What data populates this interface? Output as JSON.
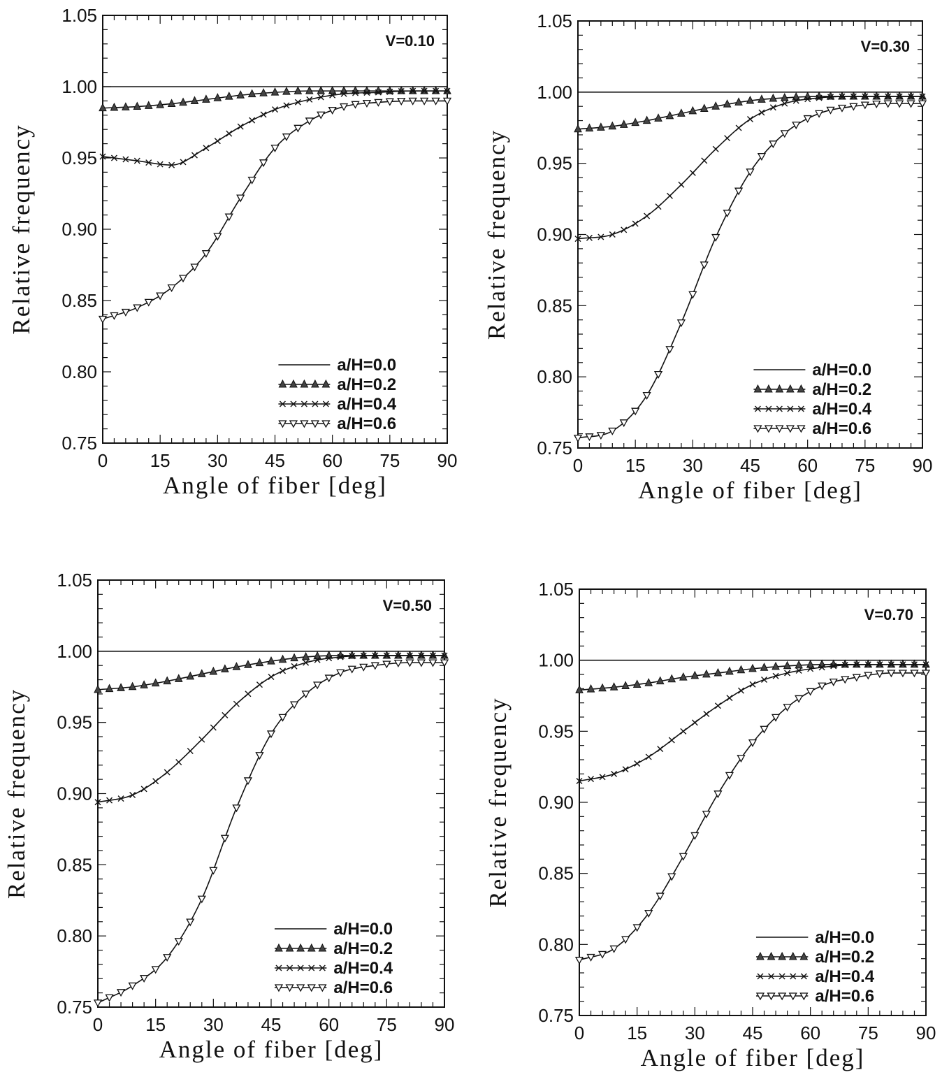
{
  "chart_data": [
    {
      "type": "line",
      "annotation": "V=0.10",
      "xlabel": "Angle of fiber [deg]",
      "ylabel": "Relative frequency",
      "xlim": [
        0,
        90
      ],
      "ylim": [
        0.75,
        1.05
      ],
      "xticks": [
        "0",
        "15",
        "30",
        "45",
        "60",
        "75",
        "90"
      ],
      "yticks": [
        "0.75",
        "0.80",
        "0.85",
        "0.90",
        "0.95",
        "1.00",
        "1.05"
      ],
      "legend_position": "bottom-right",
      "x": [
        0,
        9,
        18,
        27,
        36,
        45,
        54,
        63,
        72,
        81,
        90
      ],
      "series": [
        {
          "name": "a/H=0.0",
          "marker": "none",
          "values": [
            1.0,
            1.0,
            1.0,
            1.0,
            1.0,
            1.0,
            1.0,
            1.0,
            1.0,
            1.0,
            1.0
          ]
        },
        {
          "name": "a/H=0.2",
          "marker": "filled",
          "values": [
            0.985,
            0.986,
            0.988,
            0.991,
            0.994,
            0.996,
            0.997,
            0.997,
            0.997,
            0.997,
            0.997
          ]
        },
        {
          "name": "a/H=0.4",
          "marker": "cross",
          "values": [
            0.951,
            0.948,
            0.945,
            0.957,
            0.972,
            0.984,
            0.991,
            0.995,
            0.996,
            0.997,
            0.997
          ]
        },
        {
          "name": "a/H=0.6",
          "marker": "open",
          "values": [
            0.837,
            0.845,
            0.859,
            0.883,
            0.922,
            0.957,
            0.976,
            0.986,
            0.989,
            0.99,
            0.99
          ]
        }
      ]
    },
    {
      "type": "line",
      "annotation": "V=0.30",
      "xlabel": "Angle of fiber [deg]",
      "ylabel": "Relative frequency",
      "xlim": [
        0,
        90
      ],
      "ylim": [
        0.75,
        1.05
      ],
      "xticks": [
        "0",
        "15",
        "30",
        "45",
        "60",
        "75",
        "90"
      ],
      "yticks": [
        "0.75",
        "0.80",
        "0.85",
        "0.90",
        "0.95",
        "1.00",
        "1.05"
      ],
      "legend_position": "bottom-right",
      "x": [
        0,
        9,
        18,
        27,
        36,
        45,
        54,
        63,
        72,
        81,
        90
      ],
      "series": [
        {
          "name": "a/H=0.0",
          "marker": "none",
          "values": [
            1.0,
            1.0,
            1.0,
            1.0,
            1.0,
            1.0,
            1.0,
            1.0,
            1.0,
            1.0,
            1.0
          ]
        },
        {
          "name": "a/H=0.2",
          "marker": "filled",
          "values": [
            0.974,
            0.976,
            0.98,
            0.985,
            0.99,
            0.994,
            0.996,
            0.997,
            0.997,
            0.997,
            0.997
          ]
        },
        {
          "name": "a/H=0.4",
          "marker": "cross",
          "values": [
            0.897,
            0.9,
            0.913,
            0.935,
            0.96,
            0.981,
            0.992,
            0.996,
            0.997,
            0.997,
            0.997
          ]
        },
        {
          "name": "a/H=0.6",
          "marker": "open",
          "values": [
            0.757,
            0.762,
            0.787,
            0.838,
            0.898,
            0.944,
            0.971,
            0.985,
            0.99,
            0.992,
            0.992
          ]
        }
      ]
    },
    {
      "type": "line",
      "annotation": "V=0.50",
      "xlabel": "Angle of fiber [deg]",
      "ylabel": "Relative frequency",
      "xlim": [
        0,
        90
      ],
      "ylim": [
        0.75,
        1.05
      ],
      "xticks": [
        "0",
        "15",
        "30",
        "45",
        "60",
        "75",
        "90"
      ],
      "yticks": [
        "0.75",
        "0.80",
        "0.85",
        "0.90",
        "0.95",
        "1.00",
        "1.05"
      ],
      "legend_position": "bottom-right",
      "x": [
        0,
        9,
        18,
        27,
        36,
        45,
        54,
        63,
        72,
        81,
        90
      ],
      "series": [
        {
          "name": "a/H=0.0",
          "marker": "none",
          "values": [
            1.0,
            1.0,
            1.0,
            1.0,
            1.0,
            1.0,
            1.0,
            1.0,
            1.0,
            1.0,
            1.0
          ]
        },
        {
          "name": "a/H=0.2",
          "marker": "filled",
          "values": [
            0.973,
            0.975,
            0.979,
            0.984,
            0.989,
            0.993,
            0.996,
            0.997,
            0.997,
            0.997,
            0.997
          ]
        },
        {
          "name": "a/H=0.4",
          "marker": "cross",
          "values": [
            0.894,
            0.899,
            0.915,
            0.938,
            0.963,
            0.982,
            0.992,
            0.996,
            0.997,
            0.997,
            0.997
          ]
        },
        {
          "name": "a/H=0.6",
          "marker": "open",
          "values": [
            0.753,
            0.765,
            0.785,
            0.826,
            0.89,
            0.942,
            0.97,
            0.985,
            0.99,
            0.992,
            0.992
          ]
        }
      ]
    },
    {
      "type": "line",
      "annotation": "V=0.70",
      "xlabel": "Angle of fiber [deg]",
      "ylabel": "Relative frequency",
      "xlim": [
        0,
        90
      ],
      "ylim": [
        0.75,
        1.05
      ],
      "xticks": [
        "0",
        "15",
        "30",
        "45",
        "60",
        "75",
        "90"
      ],
      "yticks": [
        "0.75",
        "0.80",
        "0.85",
        "0.90",
        "0.95",
        "1.00",
        "1.05"
      ],
      "legend_position": "bottom-right",
      "x": [
        0,
        9,
        18,
        27,
        36,
        45,
        54,
        63,
        72,
        81,
        90
      ],
      "series": [
        {
          "name": "a/H=0.0",
          "marker": "none",
          "values": [
            1.0,
            1.0,
            1.0,
            1.0,
            1.0,
            1.0,
            1.0,
            1.0,
            1.0,
            1.0,
            1.0
          ]
        },
        {
          "name": "a/H=0.2",
          "marker": "filled",
          "values": [
            0.979,
            0.981,
            0.984,
            0.988,
            0.991,
            0.994,
            0.996,
            0.997,
            0.997,
            0.997,
            0.997
          ]
        },
        {
          "name": "a/H=0.4",
          "marker": "cross",
          "values": [
            0.915,
            0.92,
            0.932,
            0.95,
            0.968,
            0.983,
            0.991,
            0.995,
            0.997,
            0.997,
            0.997
          ]
        },
        {
          "name": "a/H=0.6",
          "marker": "open",
          "values": [
            0.789,
            0.797,
            0.822,
            0.862,
            0.906,
            0.942,
            0.967,
            0.982,
            0.988,
            0.991,
            0.991
          ]
        }
      ]
    }
  ]
}
